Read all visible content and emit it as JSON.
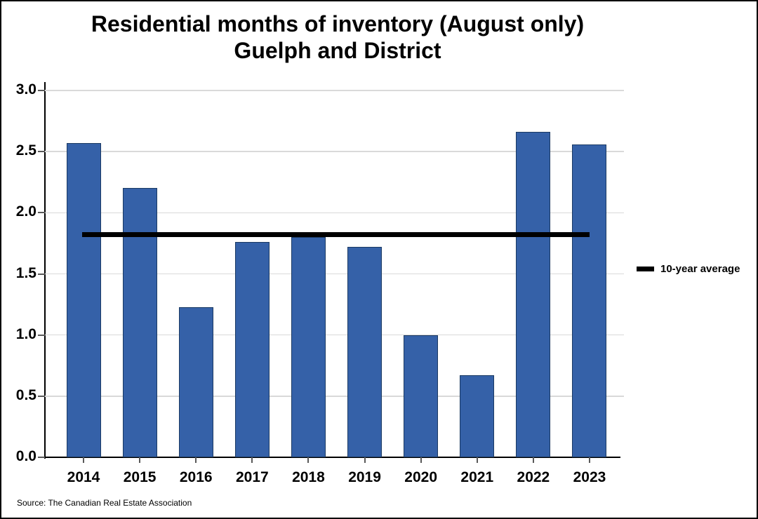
{
  "title": {
    "line1": "Residential months of inventory (August only)",
    "line2": "Guelph and District"
  },
  "legend": {
    "label": "10-year average"
  },
  "source": "Source: The Canadian Real Estate Association",
  "colors": {
    "bar_fill": "#3561a8",
    "bar_border": "#1b3a63",
    "average_line": "#000000",
    "gridline": "#d9d9d9",
    "axis": "#000000",
    "background": "#ffffff"
  },
  "chart_data": {
    "type": "bar",
    "title": "Residential months of inventory (August only) Guelph and District",
    "categories": [
      "2014",
      "2015",
      "2016",
      "2017",
      "2018",
      "2019",
      "2020",
      "2021",
      "2022",
      "2023"
    ],
    "values": [
      2.57,
      2.2,
      1.23,
      1.76,
      1.8,
      1.72,
      1.0,
      0.67,
      2.66,
      2.56
    ],
    "average_line": {
      "label": "10-year average",
      "value": 1.82
    },
    "xlabel": "",
    "ylabel": "",
    "ylim": [
      0,
      3.0
    ],
    "ytick_step": 0.5,
    "ytick_labels": [
      "0.0",
      "0.5",
      "1.0",
      "1.5",
      "2.0",
      "2.5",
      "3.0"
    ],
    "grid": true,
    "legend_position": "right"
  }
}
